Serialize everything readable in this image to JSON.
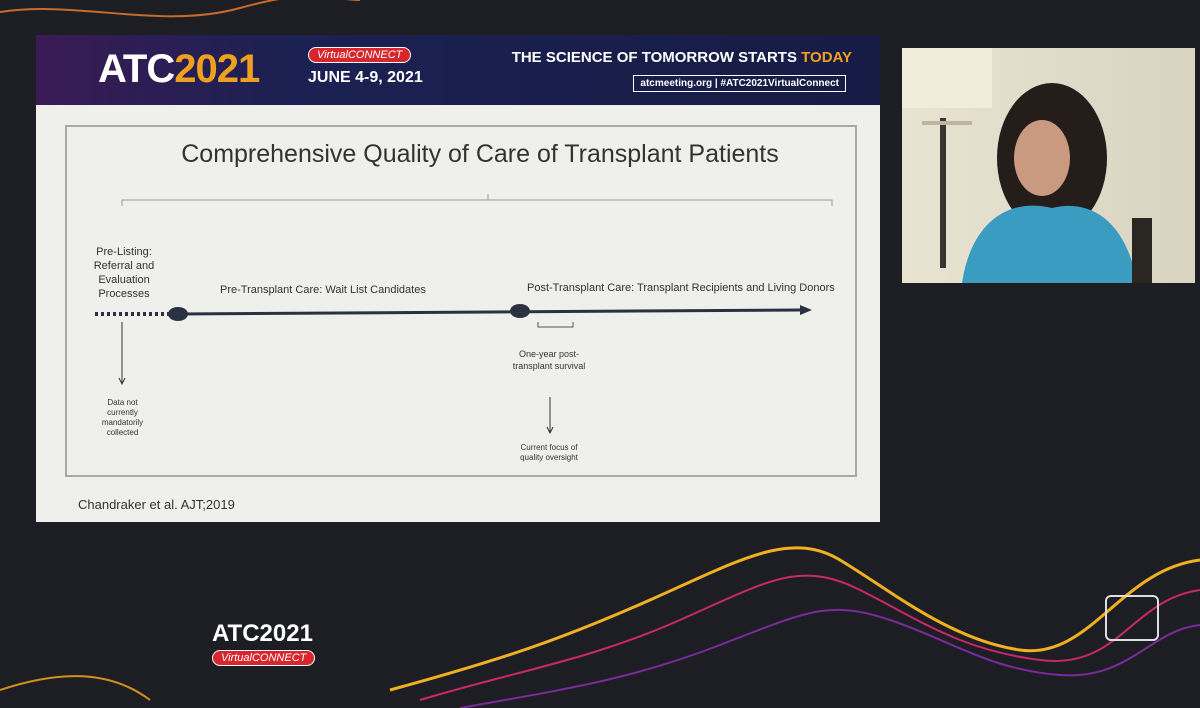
{
  "banner": {
    "logo_prefix": "ATC",
    "logo_year": "2021",
    "badge": "VirtualCONNECT",
    "dates": "JUNE 4-9, 2021",
    "tagline": "THE SCIENCE OF TOMORROW STARTS",
    "tagline_highlight": "TODAY",
    "links": "atcmeeting.org | #ATC2021VirtualConnect"
  },
  "slide": {
    "title": "Comprehensive Quality of Care of Transplant Patients",
    "stages": [
      "Pre-Listing: Referral and Evaluation Processes",
      "Pre-Transplant Care: Wait List Candidates",
      "Post-Transplant Care: Transplant Recipients and Living Donors"
    ],
    "notes": [
      "Data not currently mandatorily collected",
      "One-year post-transplant survival",
      "Current focus of quality oversight"
    ],
    "citation": "Chandraker et al. AJT;2019"
  },
  "footer": {
    "logo": "ATC2021",
    "badge": "VirtualCONNECT"
  }
}
